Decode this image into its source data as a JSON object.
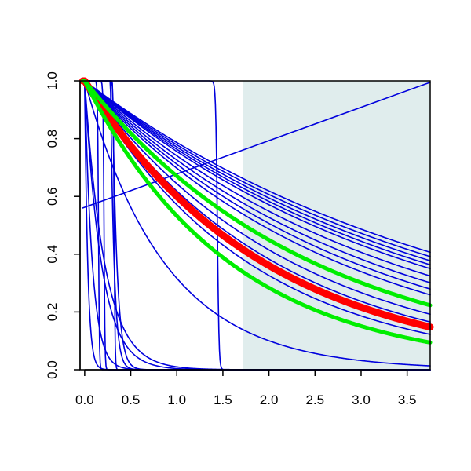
{
  "chart_data": {
    "type": "line",
    "title": "",
    "xlabel": "",
    "ylabel": "",
    "xlim": [
      -0.05,
      3.75
    ],
    "ylim": [
      0.0,
      1.0
    ],
    "x_ticks": [
      "0.0",
      "0.5",
      "1.0",
      "1.5",
      "2.0",
      "2.5",
      "3.0",
      "3.5"
    ],
    "y_ticks": [
      "0.0",
      "0.2",
      "0.4",
      "0.6",
      "0.8",
      "1.0"
    ],
    "grid": false,
    "legend": "none",
    "shaded_region": {
      "x_start": 1.72,
      "x_end": 3.75,
      "color": "#e0eded"
    },
    "colors": {
      "blue": "#0000dd",
      "red": "#ff0000",
      "green": "#00ee00"
    },
    "series": [
      {
        "color": "blue",
        "kind": "exp",
        "decay": 0.24,
        "offset": 0
      },
      {
        "color": "blue",
        "kind": "exp",
        "decay": 0.25,
        "offset": 0
      },
      {
        "color": "blue",
        "kind": "exp",
        "decay": 0.26,
        "offset": 0
      },
      {
        "color": "blue",
        "kind": "exp",
        "decay": 0.27,
        "offset": 0
      },
      {
        "color": "blue",
        "kind": "exp",
        "decay": 0.28,
        "offset": 0
      },
      {
        "color": "blue",
        "kind": "exp",
        "decay": 0.3,
        "offset": 0
      },
      {
        "color": "blue",
        "kind": "exp",
        "decay": 0.32,
        "offset": 0
      },
      {
        "color": "blue",
        "kind": "exp",
        "decay": 0.34,
        "offset": 0
      },
      {
        "color": "blue",
        "kind": "exp",
        "decay": 0.36,
        "offset": 0
      },
      {
        "color": "blue",
        "kind": "exp",
        "decay": 0.4,
        "offset": 0
      },
      {
        "color": "blue",
        "kind": "exp",
        "decay": 0.44,
        "offset": 0
      },
      {
        "color": "blue",
        "kind": "exp",
        "decay": 0.48,
        "offset": 0
      },
      {
        "color": "blue",
        "kind": "exp",
        "decay": 0.52,
        "offset": 0
      },
      {
        "color": "blue",
        "kind": "exp",
        "decay": 0.56,
        "offset": 0
      },
      {
        "color": "blue",
        "kind": "exp",
        "decay": 1.15,
        "offset": 0
      },
      {
        "color": "blue",
        "kind": "exp",
        "decay": 4.6,
        "offset": 0
      },
      {
        "color": "blue",
        "kind": "exp",
        "decay": 5.5,
        "offset": 0
      },
      {
        "color": "blue",
        "kind": "exp",
        "decay": 12,
        "offset": 0
      },
      {
        "color": "blue",
        "kind": "exp",
        "decay": 30,
        "offset": 0
      },
      {
        "color": "blue",
        "kind": "exp",
        "decay": 20,
        "offset": 0.3
      },
      {
        "color": "blue",
        "kind": "exp",
        "decay": 25,
        "offset": 0.28
      },
      {
        "color": "blue",
        "kind": "step",
        "step_x": 0.15,
        "width": 0.02
      },
      {
        "color": "blue",
        "kind": "step",
        "step_x": 0.21,
        "width": 0.02
      },
      {
        "color": "blue",
        "kind": "step",
        "step_x": 0.32,
        "width": 0.02
      },
      {
        "color": "blue",
        "kind": "step",
        "step_x": 1.44,
        "width": 0.035
      },
      {
        "color": "blue",
        "kind": "line",
        "x": [
          -0.02,
          3.75
        ],
        "y": [
          0.56,
          0.995
        ]
      },
      {
        "color": "red",
        "kind": "exp",
        "decay": 0.51,
        "offset": 0,
        "band": 0.012
      },
      {
        "color": "green",
        "kind": "exp",
        "decay": 0.4,
        "offset": 0
      },
      {
        "color": "green",
        "kind": "exp",
        "decay": 0.63,
        "offset": 0
      }
    ]
  }
}
